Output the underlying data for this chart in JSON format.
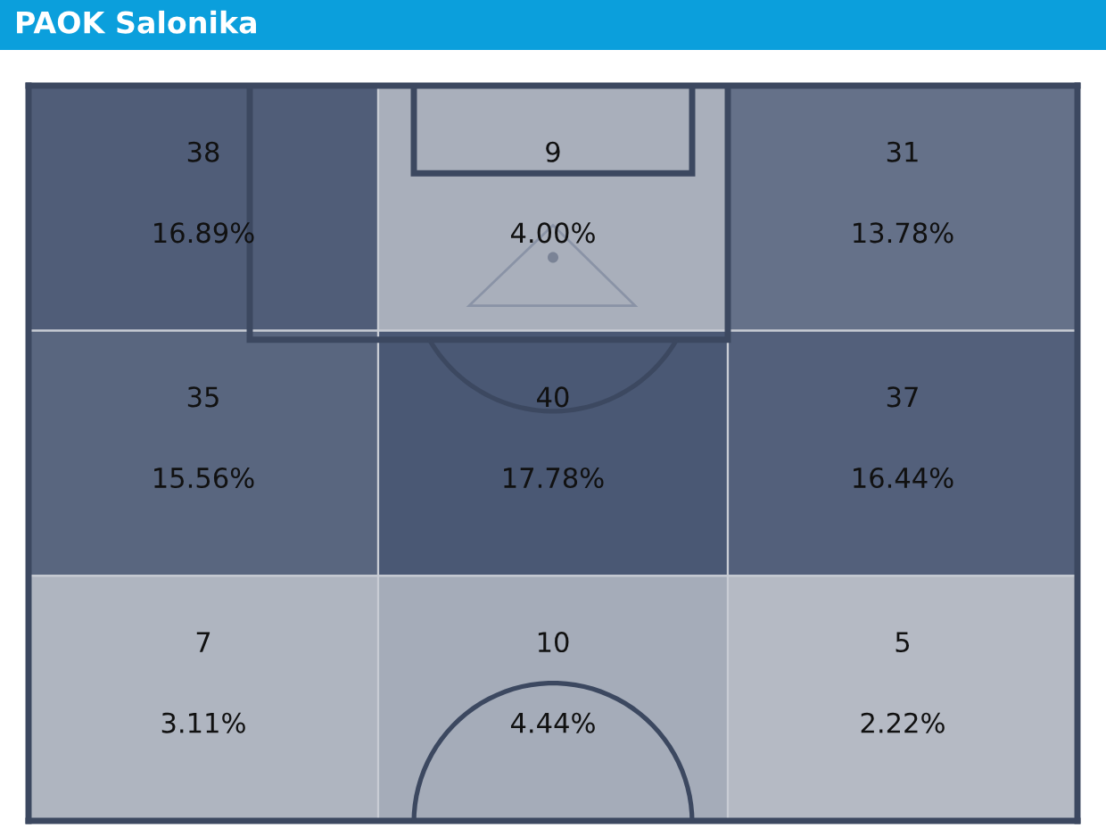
{
  "chart_data": {
    "type": "heatmap",
    "title": "PAOK Salonika",
    "categories": [
      null,
      null,
      null
    ],
    "y_categories": [
      null,
      null,
      null
    ],
    "cells": [
      [
        38,
        9,
        31
      ],
      [
        35,
        40,
        37
      ],
      [
        7,
        10,
        5
      ]
    ],
    "data_labels": true,
    "annotations": [
      "16.89%",
      "4.00%",
      "13.78%",
      "15.56%",
      "17.78%",
      "16.44%",
      "3.11%",
      "4.44%",
      "2.22%"
    ]
  }
}
